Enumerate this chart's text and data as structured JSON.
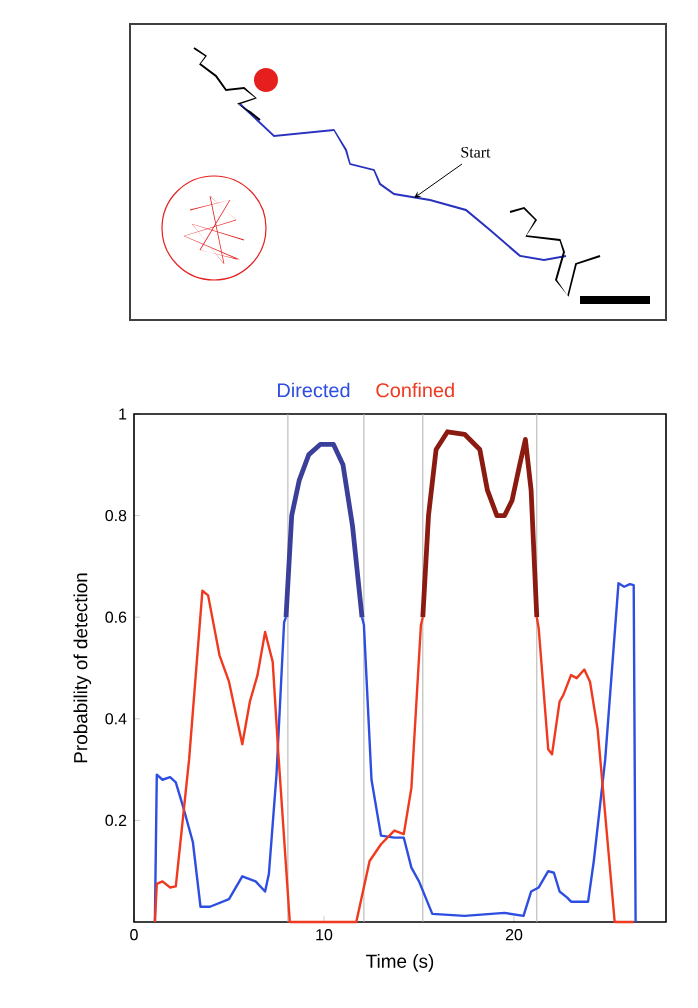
{
  "chart_data": [
    {
      "type": "other",
      "annotations": [
        "Start"
      ]
    },
    {
      "type": "line",
      "xlabel": "Time (s)",
      "ylabel": "Probability of detection",
      "xlim": [
        0,
        28
      ],
      "ylim": [
        0,
        1
      ],
      "xticks": [
        0,
        10,
        20
      ],
      "yticks": [
        0.2,
        0.4,
        0.6,
        0.8,
        1
      ],
      "legend": "top",
      "ref_lines": [
        {
          "axis": "x",
          "value": 8.1,
          "color": "#b0b0b0"
        },
        {
          "axis": "x",
          "value": 12.1,
          "color": "#b0b0b0"
        },
        {
          "axis": "x",
          "value": 15.2,
          "color": "#b0b0b0"
        },
        {
          "axis": "x",
          "value": 21.2,
          "color": "#b0b0b0"
        }
      ],
      "series": [
        {
          "name": "Directed",
          "color": "#2d4ee0",
          "x": [
            1.1,
            1.2,
            1.5,
            1.9,
            2.2,
            2.6,
            3.1,
            3.5,
            4.0,
            5.0,
            5.7,
            6.4,
            6.9,
            7.1,
            7.5,
            7.9,
            8.0,
            10.0,
            12.0,
            12.1,
            12.5,
            13.0,
            13.7,
            14.2,
            14.6,
            15.0,
            15.7,
            17.4,
            19.5,
            20.5,
            20.9,
            21.3,
            21.8,
            22.1,
            22.4,
            22.8,
            23.0,
            23.9,
            24.2,
            24.8,
            25.5,
            25.8,
            26.1,
            26.3,
            26.4
          ],
          "values": [
            0,
            0.29,
            0.28,
            0.285,
            0.275,
            0.225,
            0.157,
            0.03,
            0.03,
            0.045,
            0.09,
            0.08,
            0.06,
            0.095,
            0.29,
            0.59,
            0.6,
            null,
            0.6,
            0.585,
            0.28,
            0.17,
            0.166,
            0.166,
            0.107,
            0.08,
            0.016,
            0.012,
            0.018,
            0.012,
            0.06,
            0.068,
            0.1,
            0.097,
            0.06,
            0.048,
            0.04,
            0.04,
            0.12,
            0.32,
            0.667,
            0.66,
            0.665,
            0.663,
            0
          ]
        },
        {
          "name": "Confined",
          "color": "#f03a20",
          "x": [
            1.1,
            1.2,
            1.5,
            1.9,
            2.2,
            2.9,
            3.6,
            3.9,
            4.5,
            5.0,
            5.7,
            6.1,
            6.5,
            6.9,
            7.3,
            7.6,
            8.2,
            11.7,
            12.4,
            13.0,
            13.7,
            14.2,
            14.6,
            15.1,
            15.2,
            18.0,
            21.2,
            21.3,
            21.8,
            22.0,
            22.4,
            22.6,
            23.0,
            23.3,
            23.7,
            24.0,
            24.4,
            25.3,
            26.3
          ],
          "values": [
            0,
            0.075,
            0.08,
            0.068,
            0.07,
            0.32,
            0.652,
            0.643,
            0.525,
            0.473,
            0.35,
            0.434,
            0.486,
            0.571,
            0.512,
            0.33,
            0,
            0,
            0.12,
            0.153,
            0.18,
            0.173,
            0.264,
            0.584,
            0.6,
            null,
            0.6,
            0.578,
            0.34,
            0.33,
            0.434,
            0.447,
            0.486,
            0.48,
            0.497,
            0.473,
            0.38,
            0,
            0
          ]
        },
        {
          "color": "#3a3f9a",
          "x": [
            8.0,
            8.3,
            8.7,
            9.2,
            9.8,
            10.5,
            11.0,
            11.5,
            12.0
          ],
          "values": [
            0.6,
            0.8,
            0.87,
            0.92,
            0.94,
            0.94,
            0.9,
            0.78,
            0.6
          ]
        },
        {
          "color": "#8b1a10",
          "x": [
            15.2,
            15.5,
            15.9,
            16.5,
            17.4,
            18.2,
            18.6,
            19.1,
            19.5,
            19.9,
            20.3,
            20.6,
            20.9,
            21.2
          ],
          "values": [
            0.6,
            0.8,
            0.93,
            0.965,
            0.96,
            0.93,
            0.85,
            0.8,
            0.8,
            0.83,
            0.9,
            0.95,
            0.85,
            0.6
          ]
        }
      ]
    }
  ]
}
